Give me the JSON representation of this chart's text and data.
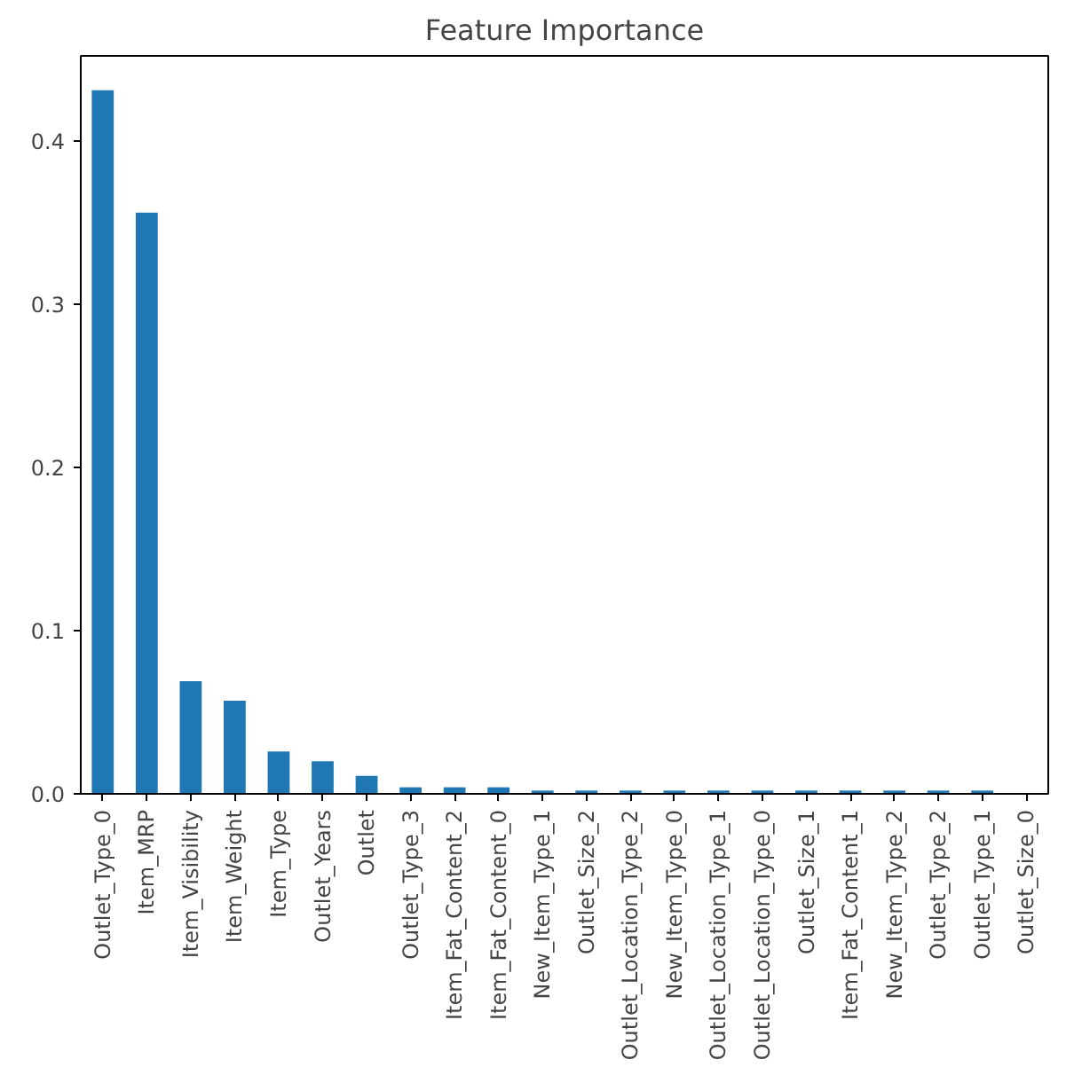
{
  "chart_data": {
    "type": "bar",
    "title": "Feature Importance",
    "categories": [
      "Outlet_Type_0",
      "Item_MRP",
      "Item_Visibility",
      "Item_Weight",
      "Item_Type",
      "Outlet_Years",
      "Outlet",
      "Outlet_Type_3",
      "Item_Fat_Content_2",
      "Item_Fat_Content_0",
      "New_Item_Type_1",
      "Outlet_Size_2",
      "Outlet_Location_Type_2",
      "New_Item_Type_0",
      "Outlet_Location_Type_1",
      "Outlet_Location_Type_0",
      "Outlet_Size_1",
      "Item_Fat_Content_1",
      "New_Item_Type_2",
      "Outlet_Type_2",
      "Outlet_Type_1",
      "Outlet_Size_0"
    ],
    "values": [
      0.431,
      0.356,
      0.069,
      0.057,
      0.026,
      0.02,
      0.011,
      0.004,
      0.004,
      0.004,
      0.002,
      0.002,
      0.002,
      0.002,
      0.002,
      0.002,
      0.002,
      0.002,
      0.002,
      0.002,
      0.002,
      0.0
    ],
    "color": "#1f77b4",
    "ylim": [
      0,
      0.452
    ],
    "yticks": [
      {
        "value": 0,
        "label": "0.0"
      },
      0.1,
      0.2,
      0.3,
      0.4
    ],
    "grid": false
  }
}
